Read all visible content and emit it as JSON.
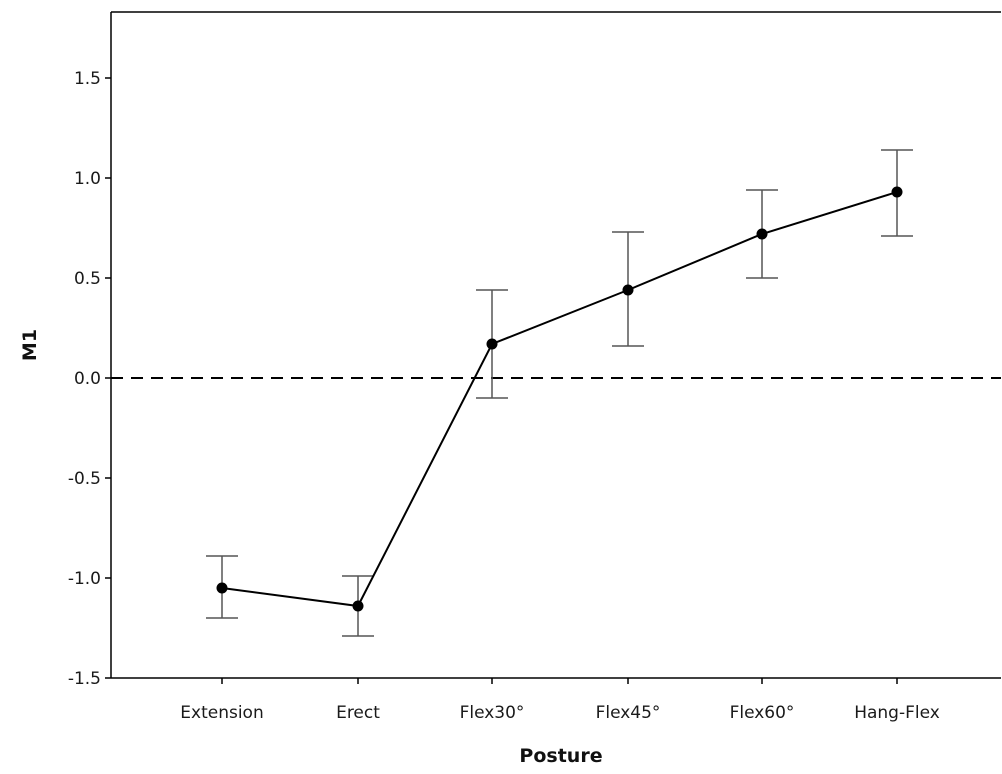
{
  "chart_data": {
    "type": "line",
    "title": "",
    "xlabel": "Posture",
    "ylabel": "M1",
    "categories": [
      "Extension",
      "Erect",
      "Flex30°",
      "Flex45°",
      "Flex60°",
      "Hang-Flex"
    ],
    "ylim": [
      -1.5,
      1.5
    ],
    "yticks": [
      "-1.5",
      "-1.0",
      "-0.5",
      "0.0",
      "0.5",
      "1.0",
      "1.5"
    ],
    "series": [
      {
        "values": [
          -1.05,
          -1.14,
          0.17,
          0.44,
          0.72,
          0.93
        ],
        "error_low": [
          -1.2,
          -1.29,
          -0.1,
          0.16,
          0.5,
          0.71
        ],
        "error_high": [
          -0.89,
          -0.99,
          0.44,
          0.73,
          0.94,
          1.14
        ]
      }
    ],
    "reference_line": {
      "y": 0,
      "style": "dashed"
    },
    "grid": false,
    "legend": "none",
    "colors": {
      "line": "#000000",
      "error_bar": "#555555",
      "axis": "#000000"
    }
  }
}
